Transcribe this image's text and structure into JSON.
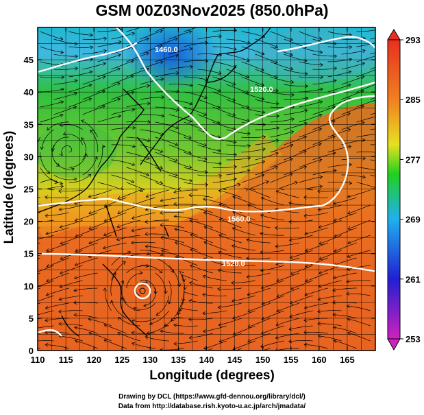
{
  "title": "GSM 00Z03Nov2025 (850.0hPa)",
  "axes": {
    "xlabel": "Longitude (degrees)",
    "ylabel": "Latitude  (degrees)",
    "xticks": [
      "110",
      "115",
      "120",
      "125",
      "130",
      "135",
      "140",
      "145",
      "150",
      "155",
      "160",
      "165"
    ],
    "yticks": [
      "0",
      "5",
      "10",
      "15",
      "20",
      "25",
      "30",
      "35",
      "40",
      "45"
    ],
    "xlim": [
      110,
      170
    ],
    "ylim": [
      0,
      50
    ]
  },
  "colorbar": {
    "ticks": [
      "293",
      "285",
      "277",
      "269",
      "261",
      "253"
    ],
    "range": [
      253,
      293
    ],
    "colors": [
      "#d020c0",
      "#2020d0",
      "#20b0f0",
      "#20d020",
      "#e8e020",
      "#f08020",
      "#e84020"
    ]
  },
  "contour_labels": [
    "1460.0",
    "1520.0",
    "1560.0",
    "1520.0"
  ],
  "credits": {
    "line1": "Drawing by DCL (https://www.gfd-dennou.org/library/dcl/)",
    "line2": "Data from http://database.rish.kyoto-u.ac.jp/arch/jmadata/"
  }
}
